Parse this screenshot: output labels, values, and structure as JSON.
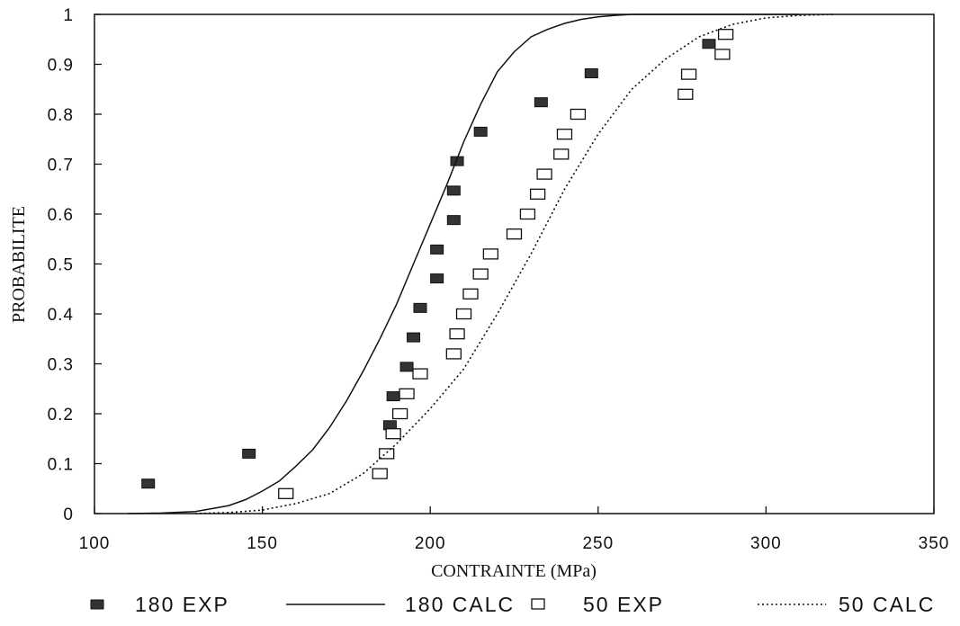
{
  "chart_data": {
    "type": "scatter",
    "title": "",
    "xlabel": "CONTRAINTE (MPa)",
    "ylabel": "PROBABILITE",
    "xlim": [
      100,
      350
    ],
    "ylim": [
      0,
      1
    ],
    "xticks": [
      100,
      150,
      200,
      250,
      300,
      350
    ],
    "yticks": [
      0,
      0.1,
      0.2,
      0.3,
      0.4,
      0.5,
      0.6,
      0.7,
      0.8,
      0.9,
      1
    ],
    "ytick_labels": [
      "0",
      "0.1",
      "0.2",
      "0.3",
      "0.4",
      "0.5",
      "0.6",
      "0.7",
      "0.8",
      "0.9",
      "1"
    ],
    "grid": false,
    "legend_position": "bottom",
    "series": [
      {
        "name": "180 EXP",
        "kind": "marker-filled",
        "color": "#333333",
        "points": [
          [
            116,
            0.06
          ],
          [
            146,
            0.12
          ],
          [
            188,
            0.177
          ],
          [
            189,
            0.235
          ],
          [
            193,
            0.294
          ],
          [
            195,
            0.353
          ],
          [
            197,
            0.412
          ],
          [
            202,
            0.471
          ],
          [
            202,
            0.529
          ],
          [
            207,
            0.588
          ],
          [
            207,
            0.647
          ],
          [
            208,
            0.706
          ],
          [
            215,
            0.765
          ],
          [
            233,
            0.824
          ],
          [
            248,
            0.882
          ],
          [
            283,
            0.941
          ]
        ]
      },
      {
        "name": "180 CALC",
        "kind": "line-solid",
        "color": "#111111",
        "points": [
          [
            110,
            0
          ],
          [
            120,
            0.001
          ],
          [
            130,
            0.004
          ],
          [
            135,
            0.01
          ],
          [
            140,
            0.016
          ],
          [
            145,
            0.028
          ],
          [
            150,
            0.045
          ],
          [
            155,
            0.065
          ],
          [
            160,
            0.095
          ],
          [
            165,
            0.128
          ],
          [
            170,
            0.172
          ],
          [
            175,
            0.225
          ],
          [
            180,
            0.285
          ],
          [
            185,
            0.35
          ],
          [
            190,
            0.42
          ],
          [
            195,
            0.5
          ],
          [
            200,
            0.58
          ],
          [
            205,
            0.66
          ],
          [
            210,
            0.745
          ],
          [
            215,
            0.82
          ],
          [
            220,
            0.885
          ],
          [
            225,
            0.925
          ],
          [
            230,
            0.955
          ],
          [
            235,
            0.97
          ],
          [
            240,
            0.982
          ],
          [
            245,
            0.99
          ],
          [
            250,
            0.995
          ],
          [
            255,
            0.998
          ],
          [
            260,
            1
          ],
          [
            310,
            1
          ]
        ]
      },
      {
        "name": "50 EXP",
        "kind": "marker-open",
        "color": "#111111",
        "points": [
          [
            157,
            0.04
          ],
          [
            185,
            0.08
          ],
          [
            187,
            0.12
          ],
          [
            189,
            0.16
          ],
          [
            191,
            0.2
          ],
          [
            193,
            0.24
          ],
          [
            197,
            0.28
          ],
          [
            207,
            0.32
          ],
          [
            208,
            0.36
          ],
          [
            210,
            0.4
          ],
          [
            212,
            0.44
          ],
          [
            215,
            0.48
          ],
          [
            218,
            0.52
          ],
          [
            225,
            0.56
          ],
          [
            229,
            0.6
          ],
          [
            232,
            0.64
          ],
          [
            234,
            0.68
          ],
          [
            239,
            0.72
          ],
          [
            240,
            0.76
          ],
          [
            244,
            0.8
          ],
          [
            276,
            0.84
          ],
          [
            277,
            0.88
          ],
          [
            287,
            0.92
          ],
          [
            288,
            0.96
          ]
        ]
      },
      {
        "name": "50 CALC",
        "kind": "line-dotted",
        "color": "#111111",
        "points": [
          [
            130,
            0
          ],
          [
            140,
            0.002
          ],
          [
            150,
            0.007
          ],
          [
            160,
            0.02
          ],
          [
            170,
            0.04
          ],
          [
            180,
            0.08
          ],
          [
            190,
            0.14
          ],
          [
            200,
            0.21
          ],
          [
            210,
            0.29
          ],
          [
            220,
            0.4
          ],
          [
            230,
            0.52
          ],
          [
            240,
            0.65
          ],
          [
            250,
            0.76
          ],
          [
            260,
            0.85
          ],
          [
            270,
            0.91
          ],
          [
            280,
            0.955
          ],
          [
            290,
            0.98
          ],
          [
            300,
            0.993
          ],
          [
            310,
            0.998
          ],
          [
            320,
            1
          ]
        ]
      }
    ]
  }
}
